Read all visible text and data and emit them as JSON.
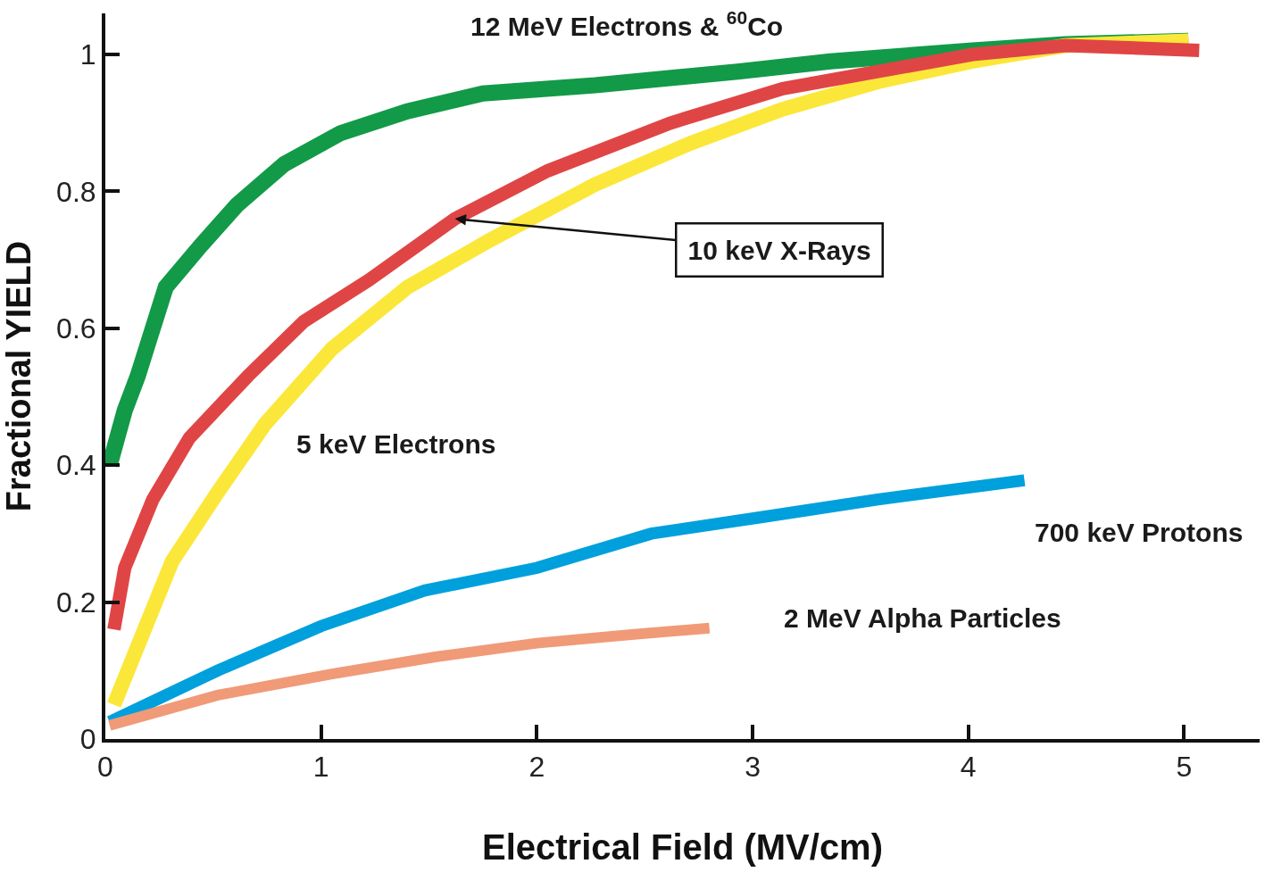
{
  "chart_data": {
    "type": "line",
    "xlabel": "Electrical Field (MV/cm)",
    "ylabel": "Fractional YIELD",
    "xlim": [
      0,
      5.35
    ],
    "ylim": [
      0,
      1.06
    ],
    "xticks": [
      0,
      1,
      2,
      3,
      4,
      5
    ],
    "yticks": [
      0,
      0.2,
      0.4,
      0.6,
      0.8,
      1
    ],
    "series": [
      {
        "name": "12 MeV Electrons & $^{60}$Co",
        "color": "#129a48",
        "x": [
          0.02,
          0.09,
          0.15,
          0.2,
          0.28,
          0.44,
          0.61,
          0.83,
          1.09,
          1.4,
          1.75,
          2.27,
          2.93,
          3.36,
          4.02,
          4.45,
          5.02
        ],
        "values": [
          0.4,
          0.48,
          0.53,
          0.58,
          0.66,
          0.72,
          0.78,
          0.84,
          0.885,
          0.917,
          0.943,
          0.955,
          0.975,
          0.99,
          1.006,
          1.015,
          1.02
        ]
      },
      {
        "name": "5 keV Electrons",
        "color": "#fbe73a",
        "x": [
          0.04,
          0.13,
          0.31,
          0.52,
          0.74,
          1.05,
          1.4,
          1.79,
          2.27,
          2.71,
          3.14,
          3.58,
          4.02,
          4.45,
          5.02
        ],
        "values": [
          0.05,
          0.12,
          0.26,
          0.36,
          0.46,
          0.57,
          0.66,
          0.73,
          0.81,
          0.87,
          0.92,
          0.96,
          0.99,
          1.013,
          1.02
        ]
      },
      {
        "color": "#e04545",
        "x": [
          0.04,
          0.09,
          0.22,
          0.39,
          0.66,
          0.92,
          1.22,
          1.62,
          2.05,
          2.62,
          3.14,
          3.58,
          4.02,
          4.45,
          5.07
        ],
        "values": [
          0.16,
          0.25,
          0.35,
          0.44,
          0.53,
          0.61,
          0.67,
          0.76,
          0.83,
          0.9,
          0.95,
          0.975,
          1.0,
          1.013,
          1.006
        ]
      },
      {
        "name": "700 keV Protons",
        "color": "#00a0dc",
        "x": [
          0.02,
          0.52,
          1.0,
          1.48,
          2.0,
          2.53,
          3.06,
          3.58,
          4.26
        ],
        "values": [
          0.025,
          0.1,
          0.165,
          0.217,
          0.25,
          0.3,
          0.325,
          0.35,
          0.378
        ]
      },
      {
        "name": "2 MeV Alpha Particles",
        "color": "#f09a78",
        "x": [
          0.02,
          0.52,
          1.05,
          1.53,
          2.0,
          2.45,
          2.8
        ],
        "values": [
          0.02,
          0.064,
          0.095,
          0.12,
          0.14,
          0.153,
          0.162
        ]
      }
    ],
    "annotations": [
      {
        "text": "10 keV X-Rays",
        "x": 1.62,
        "y": 0.76
      }
    ]
  }
}
